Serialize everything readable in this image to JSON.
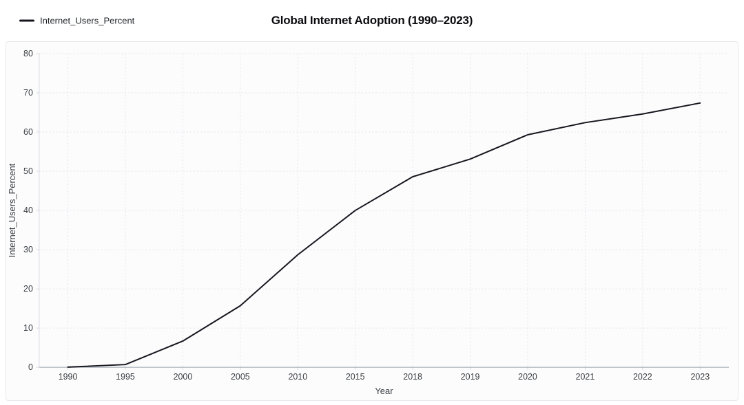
{
  "header": {
    "legend": {
      "label": "Internet_Users_Percent",
      "swatch_color": "#16161e"
    },
    "title": "Global Internet Adoption (1990–2023)"
  },
  "chart_data": {
    "type": "line",
    "x": [
      "1990",
      "1995",
      "2000",
      "2005",
      "2010",
      "2015",
      "2018",
      "2019",
      "2020",
      "2021",
      "2022",
      "2023"
    ],
    "series": [
      {
        "name": "Internet_Users_Percent",
        "color": "#16161e",
        "values": [
          0.05,
          0.7,
          6.7,
          15.7,
          28.7,
          40.0,
          48.6,
          53.1,
          59.3,
          62.4,
          64.6,
          67.4
        ]
      }
    ],
    "title": "Global Internet Adoption (1990–2023)",
    "xlabel": "Year",
    "ylabel": "Internet_Users_Percent",
    "ylim": [
      0,
      80
    ],
    "yticks": [
      0,
      10,
      20,
      30,
      40,
      50,
      60,
      70,
      80
    ],
    "grid": true,
    "legend_position": "top-left",
    "grid_color": "#e4e5ea",
    "axis_color": "#9aa1ab",
    "axis_light_color": "#d7dae0",
    "tick_label_color": "#3c4043"
  }
}
